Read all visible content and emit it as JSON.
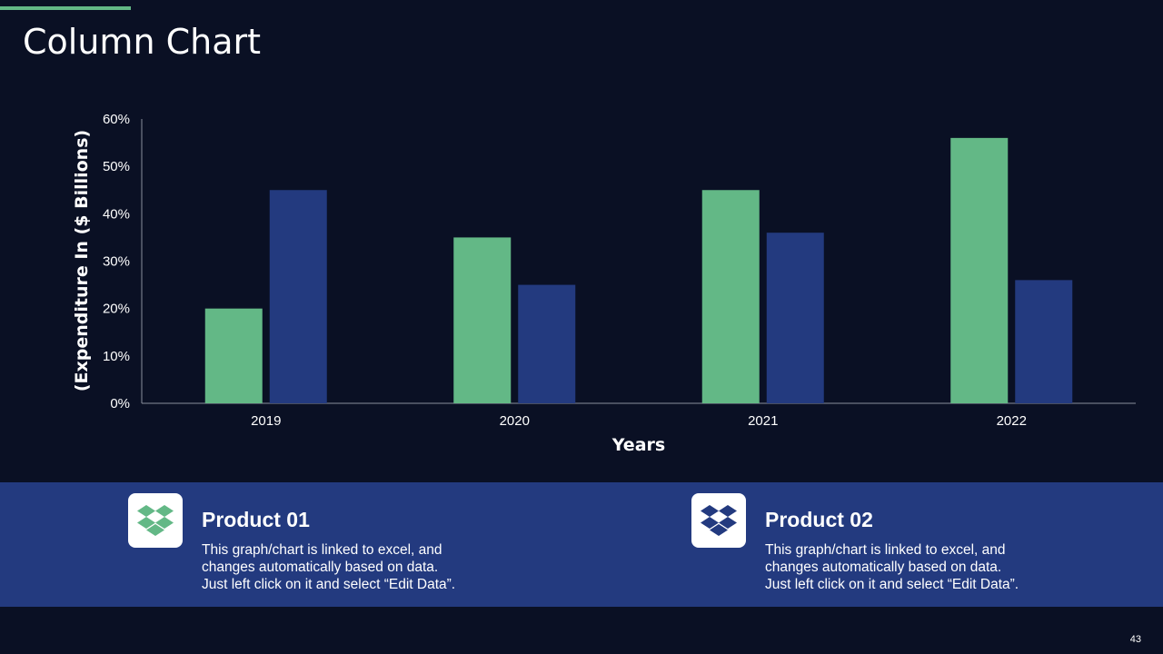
{
  "slide": {
    "title": "Column Chart",
    "page_number": "43"
  },
  "colors": {
    "background": "#0a1024",
    "accent_green": "#63b886",
    "accent_blue": "#233a7f"
  },
  "chart_data": {
    "type": "bar",
    "categories": [
      "2019",
      "2020",
      "2021",
      "2022"
    ],
    "series": [
      {
        "values": [
          20,
          35,
          45,
          56
        ],
        "color": "#63b886"
      },
      {
        "values": [
          45,
          25,
          36,
          26
        ],
        "color": "#233a7f"
      }
    ],
    "ylim": [
      0,
      60
    ],
    "yticks": [
      "0%",
      "10%",
      "20%",
      "30%",
      "40%",
      "50%",
      "60%"
    ],
    "xlabel": "Years",
    "ylabel": "(Expenditure In ($ Billions)",
    "grid": false
  },
  "products": [
    {
      "title": "Product 01",
      "icon": "dropbox-icon",
      "icon_color": "#63b886",
      "desc": [
        "This graph/chart is linked to excel, and",
        "changes automatically based on data.",
        "Just left click on it and select “Edit Data”."
      ]
    },
    {
      "title": "Product 02",
      "icon": "dropbox-icon",
      "icon_color": "#233a7f",
      "desc": [
        "This graph/chart is linked to excel, and",
        "changes automatically based on data.",
        "Just left click on it and select “Edit Data”."
      ]
    }
  ]
}
